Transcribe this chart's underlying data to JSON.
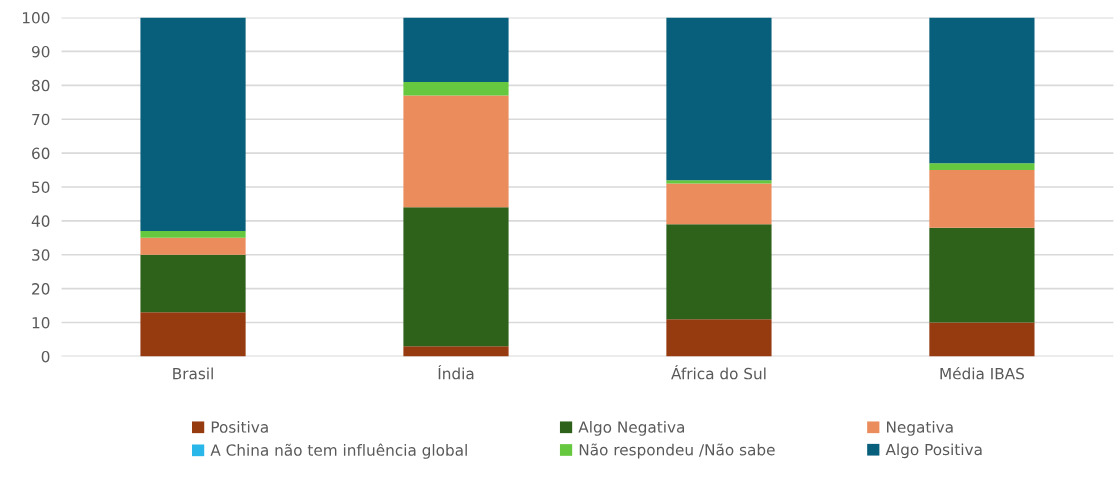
{
  "chart_data": {
    "type": "bar",
    "stacked": true,
    "categories": [
      "Brasil",
      "Índia",
      "África do Sul",
      "Média IBAS"
    ],
    "series": [
      {
        "name": "Positiva",
        "color": "#963a10",
        "values": [
          13,
          3,
          11,
          10
        ]
      },
      {
        "name": "Algo Negativa",
        "color": "#2e621a",
        "values": [
          17,
          41,
          28,
          28
        ]
      },
      {
        "name": "Negativa",
        "color": "#eb8c5c",
        "values": [
          5,
          33,
          12,
          17
        ]
      },
      {
        "name": "A China não tem influência global",
        "color": "#29b6e8",
        "values": [
          0,
          0,
          0,
          0
        ]
      },
      {
        "name": "Não respondeu /Não sabe",
        "color": "#66c83e",
        "values": [
          2,
          4,
          1,
          2
        ]
      },
      {
        "name": "Algo Positiva",
        "color": "#085f7c",
        "values": [
          63,
          19,
          48,
          43
        ]
      }
    ],
    "ylim": [
      0,
      100
    ],
    "yticks": [
      0,
      10,
      20,
      30,
      40,
      50,
      60,
      70,
      80,
      90,
      100
    ],
    "grid": "y",
    "legend": "bottom"
  }
}
